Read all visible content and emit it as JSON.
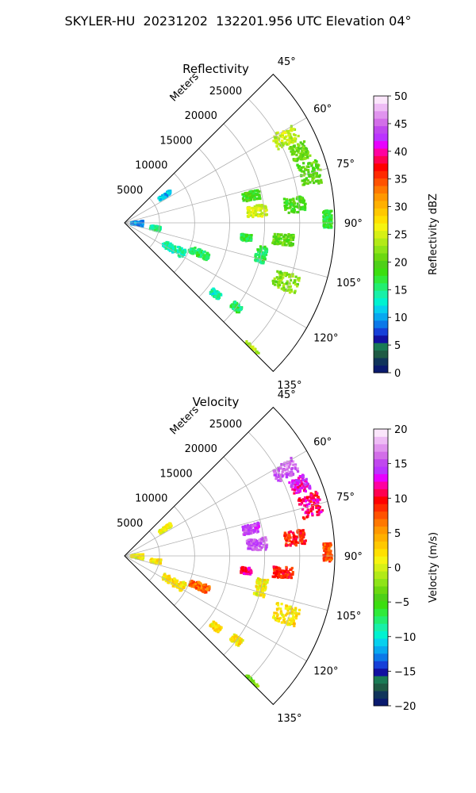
{
  "figure_title": "SKYLER-HU  20231202  132201.956 UTC Elevation 04°",
  "chart_data": [
    {
      "type": "heatmap",
      "subtype": "polar-sector",
      "title": "Reflectivity",
      "range_label": "Meters",
      "range_ticks": [
        5000,
        10000,
        15000,
        20000,
        25000
      ],
      "range_tick_labels": [
        "5000",
        "10000",
        "15000",
        "20000",
        "25000"
      ],
      "max_range": 30000,
      "azimuth_ticks": [
        45,
        60,
        75,
        90,
        105,
        120,
        135
      ],
      "azimuth_tick_labels": [
        "45°",
        "60°",
        "75°",
        "90°",
        "105°",
        "120°",
        "135°"
      ],
      "azimuth_range": [
        45,
        135
      ],
      "grid": true,
      "colorbar": {
        "label": "Reflectivity dBZ",
        "range": [
          0,
          50
        ],
        "ticks": [
          0,
          5,
          10,
          15,
          20,
          25,
          30,
          35,
          40,
          45,
          50
        ],
        "tick_labels": [
          "0",
          "5",
          "10",
          "15",
          "20",
          "25",
          "30",
          "35",
          "40",
          "45",
          "50"
        ],
        "colors": [
          "#0a1a6e",
          "#10345a",
          "#1f5a44",
          "#1a7a55",
          "#1210a0",
          "#1640d8",
          "#0c78e8",
          "#08a8f0",
          "#06d0ee",
          "#00f2d0",
          "#18f0a8",
          "#22ee70",
          "#30ea3a",
          "#3cde10",
          "#4ed018",
          "#6cd810",
          "#8ee418",
          "#b2ea18",
          "#d6f016",
          "#f6f410",
          "#ffe000",
          "#ffc800",
          "#ffb000",
          "#ff9800",
          "#ff7800",
          "#ff5200",
          "#ff2a00",
          "#ff0000",
          "#ff0050",
          "#ff00a0",
          "#e800ff",
          "#bb33ff",
          "#c048ee",
          "#d26ee8",
          "#e094ee",
          "#eebcf5",
          "#fbe6fb"
        ]
      },
      "echoes": [
        {
          "az": 62,
          "r": 26000,
          "dr": 3500,
          "daz": 5,
          "value": 24
        },
        {
          "az": 68,
          "r": 27000,
          "dr": 2500,
          "daz": 5,
          "value": 21
        },
        {
          "az": 75,
          "r": 27500,
          "dr": 3000,
          "daz": 7,
          "value": 20
        },
        {
          "az": 78,
          "r": 18500,
          "dr": 2500,
          "daz": 4,
          "value": 19
        },
        {
          "az": 85,
          "r": 19000,
          "dr": 2800,
          "daz": 5,
          "value": 25
        },
        {
          "az": 84,
          "r": 24500,
          "dr": 3000,
          "daz": 5,
          "value": 19
        },
        {
          "az": 89,
          "r": 29000,
          "dr": 1200,
          "daz": 5,
          "value": 17
        },
        {
          "az": 97,
          "r": 17500,
          "dr": 1500,
          "daz": 3,
          "value": 17
        },
        {
          "az": 96,
          "r": 22800,
          "dr": 3000,
          "daz": 4,
          "value": 20
        },
        {
          "az": 103,
          "r": 20000,
          "dr": 1500,
          "daz": 7,
          "value": 16
        },
        {
          "az": 112,
          "r": 11500,
          "dr": 3000,
          "daz": 5,
          "value": 16
        },
        {
          "az": 118,
          "r": 8000,
          "dr": 3500,
          "daz": 8,
          "value": 14
        },
        {
          "az": 110,
          "r": 24500,
          "dr": 3500,
          "daz": 6,
          "value": 22
        },
        {
          "az": 127,
          "r": 20000,
          "dr": 1500,
          "daz": 3,
          "value": 16
        },
        {
          "az": 128,
          "r": 16500,
          "dr": 1500,
          "daz": 3,
          "value": 14
        },
        {
          "az": 136,
          "r": 25500,
          "dr": 2500,
          "daz": 4,
          "value": 24
        },
        {
          "az": 56,
          "r": 7000,
          "dr": 2000,
          "daz": 4,
          "value": 11
        },
        {
          "az": 93,
          "r": 1800,
          "dr": 1800,
          "daz": 18,
          "value": 9
        },
        {
          "az": 100,
          "r": 4500,
          "dr": 1500,
          "daz": 8,
          "value": 15
        }
      ]
    },
    {
      "type": "heatmap",
      "subtype": "polar-sector",
      "title": "Velocity",
      "range_label": "Meters",
      "range_ticks": [
        5000,
        10000,
        15000,
        20000,
        25000
      ],
      "range_tick_labels": [
        "5000",
        "10000",
        "15000",
        "20000",
        "25000"
      ],
      "max_range": 30000,
      "azimuth_ticks": [
        45,
        60,
        75,
        90,
        105,
        120,
        135
      ],
      "azimuth_tick_labels": [
        "45°",
        "60°",
        "75°",
        "90°",
        "105°",
        "120°",
        "135°"
      ],
      "azimuth_range": [
        45,
        135
      ],
      "grid": true,
      "colorbar": {
        "label": "Velocity (m/s)",
        "range": [
          -20,
          20
        ],
        "ticks": [
          -20,
          -15,
          -10,
          -5,
          0,
          5,
          10,
          15,
          20
        ],
        "tick_labels": [
          "−20",
          "−15",
          "−10",
          "−5",
          "0",
          "5",
          "10",
          "15",
          "20"
        ],
        "colors": [
          "#0a1a6e",
          "#10345a",
          "#1f5a44",
          "#1a7a55",
          "#1210a0",
          "#1640d8",
          "#0c78e8",
          "#08a8f0",
          "#06d0ee",
          "#00f2d0",
          "#18f0a8",
          "#22ee70",
          "#30ea3a",
          "#3cde10",
          "#4ed018",
          "#6cd810",
          "#8ee418",
          "#b2ea18",
          "#d6f016",
          "#f6f410",
          "#ffe000",
          "#ffc800",
          "#ffb000",
          "#ff9800",
          "#ff7800",
          "#ff5200",
          "#ff2a00",
          "#ff0000",
          "#ff0050",
          "#ff00a0",
          "#e800ff",
          "#bb33ff",
          "#c048ee",
          "#d26ee8",
          "#e094ee",
          "#eebcf5",
          "#fbe6fb"
        ]
      },
      "echoes": [
        {
          "az": 62,
          "r": 26000,
          "dr": 3500,
          "daz": 5,
          "value": 16
        },
        {
          "az": 68,
          "r": 27000,
          "dr": 2500,
          "daz": 5,
          "value": 13
        },
        {
          "az": 75,
          "r": 27500,
          "dr": 3000,
          "daz": 7,
          "value": 11
        },
        {
          "az": 78,
          "r": 18500,
          "dr": 2500,
          "daz": 4,
          "value": 15
        },
        {
          "az": 85,
          "r": 19000,
          "dr": 2800,
          "daz": 5,
          "value": 16
        },
        {
          "az": 84,
          "r": 24500,
          "dr": 3000,
          "daz": 5,
          "value": 9
        },
        {
          "az": 89,
          "r": 29000,
          "dr": 1200,
          "daz": 5,
          "value": 8
        },
        {
          "az": 97,
          "r": 17500,
          "dr": 1500,
          "daz": 3,
          "value": 11
        },
        {
          "az": 96,
          "r": 22800,
          "dr": 3000,
          "daz": 4,
          "value": 9
        },
        {
          "az": 103,
          "r": 20000,
          "dr": 1500,
          "daz": 7,
          "value": 1
        },
        {
          "az": 112,
          "r": 11500,
          "dr": 3000,
          "daz": 5,
          "value": 7
        },
        {
          "az": 118,
          "r": 8000,
          "dr": 3500,
          "daz": 8,
          "value": 2
        },
        {
          "az": 110,
          "r": 24500,
          "dr": 3500,
          "daz": 6,
          "value": 2
        },
        {
          "az": 127,
          "r": 20000,
          "dr": 1500,
          "daz": 3,
          "value": 2
        },
        {
          "az": 128,
          "r": 16500,
          "dr": 1500,
          "daz": 3,
          "value": 2
        },
        {
          "az": 136,
          "r": 25500,
          "dr": 2500,
          "daz": 4,
          "value": -3
        },
        {
          "az": 56,
          "r": 7000,
          "dr": 2000,
          "daz": 4,
          "value": 1
        },
        {
          "az": 93,
          "r": 1800,
          "dr": 1800,
          "daz": 18,
          "value": 1
        },
        {
          "az": 100,
          "r": 4500,
          "dr": 1500,
          "daz": 8,
          "value": 2
        }
      ]
    }
  ]
}
